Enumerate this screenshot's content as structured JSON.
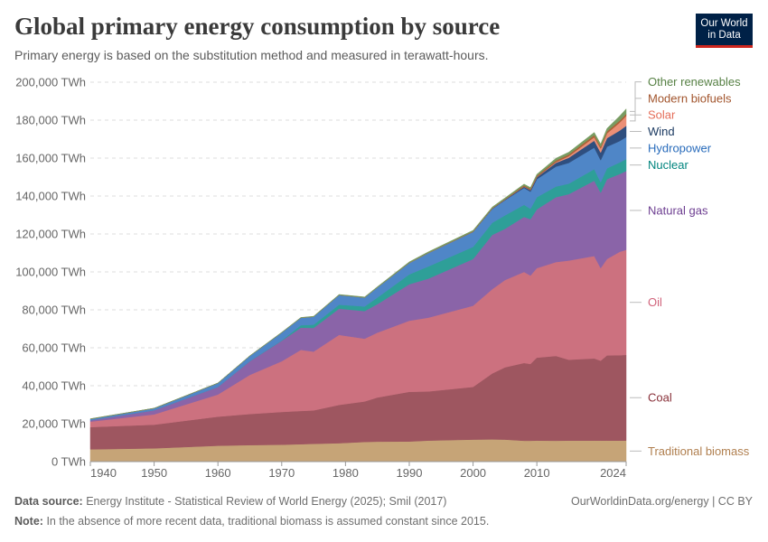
{
  "header": {
    "title": "Global primary energy consumption by source",
    "subtitle": "Primary energy is based on the substitution method and measured in terawatt-hours.",
    "logo_text": "Our World in Data"
  },
  "footer": {
    "source_label": "Data source:",
    "source_text": "Energy Institute - Statistical Review of World Energy (2025); Smil (2017)",
    "license": "OurWorldinData.org/energy | CC BY",
    "note_label": "Note:",
    "note_text": "In the absence of more recent data, traditional biomass is assumed constant since 2015."
  },
  "chart_data": {
    "type": "area",
    "stacked": true,
    "title": "Global primary energy consumption by source",
    "xlabel": "",
    "ylabel": "",
    "xlim": [
      1940,
      2024
    ],
    "ylim": [
      0,
      200000
    ],
    "unit": "TWh",
    "grid": "horizontal dashed",
    "legend": "right, inline labels",
    "x_ticks": [
      "1940",
      "1950",
      "1960",
      "1970",
      "1980",
      "1990",
      "2000",
      "2010",
      "2024"
    ],
    "y_ticks": [
      "0 TWh",
      "20,000 TWh",
      "40,000 TWh",
      "60,000 TWh",
      "80,000 TWh",
      "100,000 TWh",
      "120,000 TWh",
      "140,000 TWh",
      "160,000 TWh",
      "180,000 TWh",
      "200,000 TWh"
    ],
    "x": [
      1940,
      1950,
      1960,
      1965,
      1970,
      1973,
      1975,
      1979,
      1983,
      1985,
      1990,
      1993,
      2000,
      2003,
      2005,
      2008,
      2009,
      2010,
      2013,
      2015,
      2019,
      2020,
      2021,
      2023,
      2024
    ],
    "series": [
      {
        "name": "Traditional biomass",
        "color": "#c6a477",
        "label_color": "#b07f4f",
        "values": [
          6500,
          7000,
          8400,
          8700,
          8900,
          9200,
          9400,
          9700,
          10400,
          10500,
          10600,
          11100,
          11600,
          11700,
          11600,
          11000,
          11000,
          11100,
          11000,
          11100,
          11100,
          11100,
          11100,
          11100,
          11100
        ]
      },
      {
        "name": "Coal",
        "color": "#9e5660",
        "label_color": "#883039",
        "values": [
          11700,
          12500,
          15300,
          16400,
          17300,
          17500,
          17600,
          20200,
          21300,
          23300,
          26200,
          25900,
          27800,
          34800,
          38100,
          41000,
          40500,
          43700,
          44700,
          42600,
          43300,
          42100,
          44900,
          45000,
          45200
        ]
      },
      {
        "name": "Oil",
        "color": "#cc717f",
        "label_color": "#d0627a",
        "values": [
          2900,
          5400,
          11700,
          20600,
          26700,
          32200,
          31000,
          36900,
          33100,
          34200,
          37500,
          38900,
          42800,
          44400,
          46000,
          48000,
          46600,
          47200,
          49500,
          52300,
          54000,
          48800,
          50800,
          54500,
          55300
        ]
      },
      {
        "name": "Natural gas",
        "color": "#8a64a8",
        "label_color": "#6d3e91",
        "values": [
          700,
          2200,
          4000,
          7200,
          10800,
          11700,
          12500,
          13800,
          14600,
          15000,
          19200,
          20600,
          24600,
          28600,
          27000,
          29000,
          29700,
          31000,
          34200,
          35000,
          39700,
          39800,
          42100,
          41000,
          41600
        ]
      },
      {
        "name": "Nuclear",
        "color": "#2e9f98",
        "label_color": "#00847e",
        "values": [
          0,
          0,
          0,
          100,
          200,
          1300,
          1700,
          2100,
          2400,
          3500,
          5200,
          6400,
          6400,
          6400,
          7100,
          6400,
          5500,
          6400,
          5600,
          5500,
          6100,
          5500,
          5700,
          6100,
          6300
        ]
      },
      {
        "name": "Hydropower",
        "color": "#4f86c7",
        "label_color": "#286bbb",
        "values": [
          700,
          1000,
          2000,
          2700,
          4100,
          3900,
          4200,
          5100,
          4700,
          5300,
          6000,
          7100,
          7900,
          7300,
          8000,
          8900,
          9000,
          9500,
          10500,
          11000,
          11300,
          11600,
          11400,
          11300,
          11600
        ]
      },
      {
        "name": "Wind",
        "color": "#2f4f7f",
        "label_color": "#18375f",
        "values": [
          0,
          0,
          0,
          0,
          0,
          0,
          0,
          0,
          0,
          0,
          0,
          0,
          100,
          200,
          300,
          600,
          800,
          1000,
          2000,
          2700,
          3700,
          4000,
          4500,
          5500,
          5900
        ]
      },
      {
        "name": "Solar",
        "color": "#eb8f76",
        "label_color": "#e56e5a",
        "values": [
          0,
          0,
          0,
          0,
          0,
          0,
          0,
          0,
          0,
          0,
          0,
          0,
          0,
          0,
          0,
          100,
          100,
          100,
          400,
          800,
          1800,
          2100,
          2500,
          4200,
          5200
        ]
      },
      {
        "name": "Modern biofuels",
        "color": "#ac6136",
        "label_color": "#a2552d",
        "values": [
          0,
          0,
          0,
          0,
          0,
          0,
          0,
          0,
          0,
          0,
          100,
          100,
          200,
          200,
          300,
          600,
          600,
          700,
          800,
          900,
          1100,
          1000,
          1100,
          1100,
          1100
        ]
      },
      {
        "name": "Other renewables",
        "color": "#789c62",
        "label_color": "#578145",
        "values": [
          100,
          100,
          100,
          100,
          200,
          200,
          200,
          300,
          300,
          400,
          500,
          500,
          500,
          600,
          600,
          700,
          700,
          800,
          1200,
          1200,
          1400,
          1400,
          1500,
          2400,
          2600
        ]
      }
    ]
  }
}
